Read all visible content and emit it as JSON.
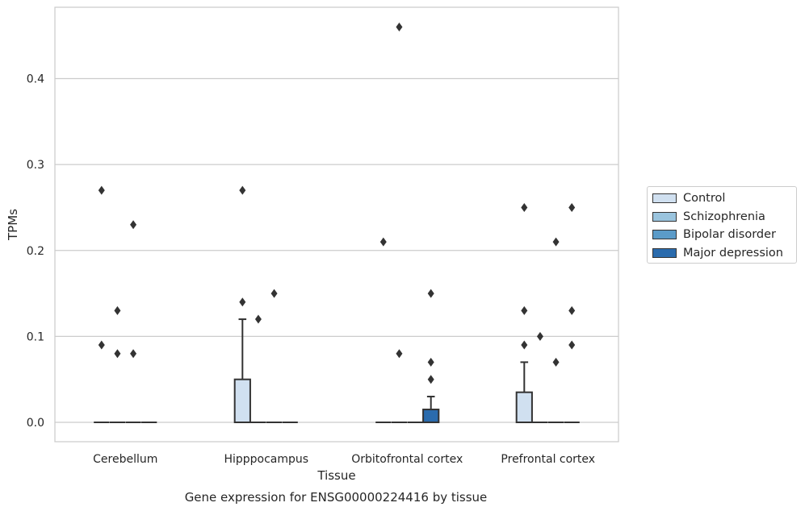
{
  "chart_data": {
    "type": "box",
    "title": "Gene expression for ENSG00000224416 by tissue",
    "xlabel": "Tissue",
    "ylabel": "TPMs",
    "ylim": [
      -0.0225,
      0.483
    ],
    "yticks": [
      "0.0",
      "0.1",
      "0.2",
      "0.3",
      "0.4"
    ],
    "categories": [
      "Cerebellum",
      "Hipppocampus",
      "Orbitofrontal cortex",
      "Prefrontal cortex"
    ],
    "grid": "horizontal",
    "legend_position": "right",
    "series": [
      {
        "name": "Control",
        "color": "#d0e0f0",
        "boxes": [
          {
            "q1": 0,
            "median": 0,
            "q3": 0,
            "whisker_low": 0,
            "whisker_high": 0,
            "outliers": [
              0.09,
              0.27
            ]
          },
          {
            "q1": 0,
            "median": 0,
            "q3": 0.05,
            "whisker_low": 0,
            "whisker_high": 0.12,
            "outliers": [
              0.27,
              0.14
            ]
          },
          {
            "q1": 0,
            "median": 0,
            "q3": 0,
            "whisker_low": 0,
            "whisker_high": 0,
            "outliers": [
              0.21
            ]
          },
          {
            "q1": 0,
            "median": 0,
            "q3": 0.035,
            "whisker_low": 0,
            "whisker_high": 0.07,
            "outliers": [
              0.09,
              0.13,
              0.25
            ]
          }
        ]
      },
      {
        "name": "Schizophrenia",
        "color": "#9ac4de",
        "boxes": [
          {
            "q1": 0,
            "median": 0,
            "q3": 0,
            "whisker_low": 0,
            "whisker_high": 0,
            "outliers": [
              0.08,
              0.13
            ]
          },
          {
            "q1": 0,
            "median": 0,
            "q3": 0,
            "whisker_low": 0,
            "whisker_high": 0,
            "outliers": [
              0.12
            ]
          },
          {
            "q1": 0,
            "median": 0,
            "q3": 0,
            "whisker_low": 0,
            "whisker_high": 0,
            "outliers": [
              0.08,
              0.46
            ]
          },
          {
            "q1": 0,
            "median": 0,
            "q3": 0,
            "whisker_low": 0,
            "whisker_high": 0,
            "outliers": [
              0.1
            ]
          }
        ]
      },
      {
        "name": "Bipolar disorder",
        "color": "#5b9bc8",
        "boxes": [
          {
            "q1": 0,
            "median": 0,
            "q3": 0,
            "whisker_low": 0,
            "whisker_high": 0,
            "outliers": [
              0.08,
              0.23
            ]
          },
          {
            "q1": 0,
            "median": 0,
            "q3": 0,
            "whisker_low": 0,
            "whisker_high": 0,
            "outliers": [
              0.15
            ]
          },
          {
            "q1": 0,
            "median": 0,
            "q3": 0,
            "whisker_low": 0,
            "whisker_high": 0,
            "outliers": []
          },
          {
            "q1": 0,
            "median": 0,
            "q3": 0,
            "whisker_low": 0,
            "whisker_high": 0,
            "outliers": [
              0.07,
              0.21
            ]
          }
        ]
      },
      {
        "name": "Major depression",
        "color": "#2a6bad",
        "boxes": [
          {
            "q1": 0,
            "median": 0,
            "q3": 0,
            "whisker_low": 0,
            "whisker_high": 0,
            "outliers": []
          },
          {
            "q1": 0,
            "median": 0,
            "q3": 0,
            "whisker_low": 0,
            "whisker_high": 0,
            "outliers": []
          },
          {
            "q1": 0,
            "median": 0,
            "q3": 0.015,
            "whisker_low": 0,
            "whisker_high": 0.03,
            "outliers": [
              0.05,
              0.07,
              0.15
            ]
          },
          {
            "q1": 0,
            "median": 0,
            "q3": 0,
            "whisker_low": 0,
            "whisker_high": 0,
            "outliers": [
              0.09,
              0.13,
              0.25
            ]
          }
        ]
      }
    ]
  }
}
